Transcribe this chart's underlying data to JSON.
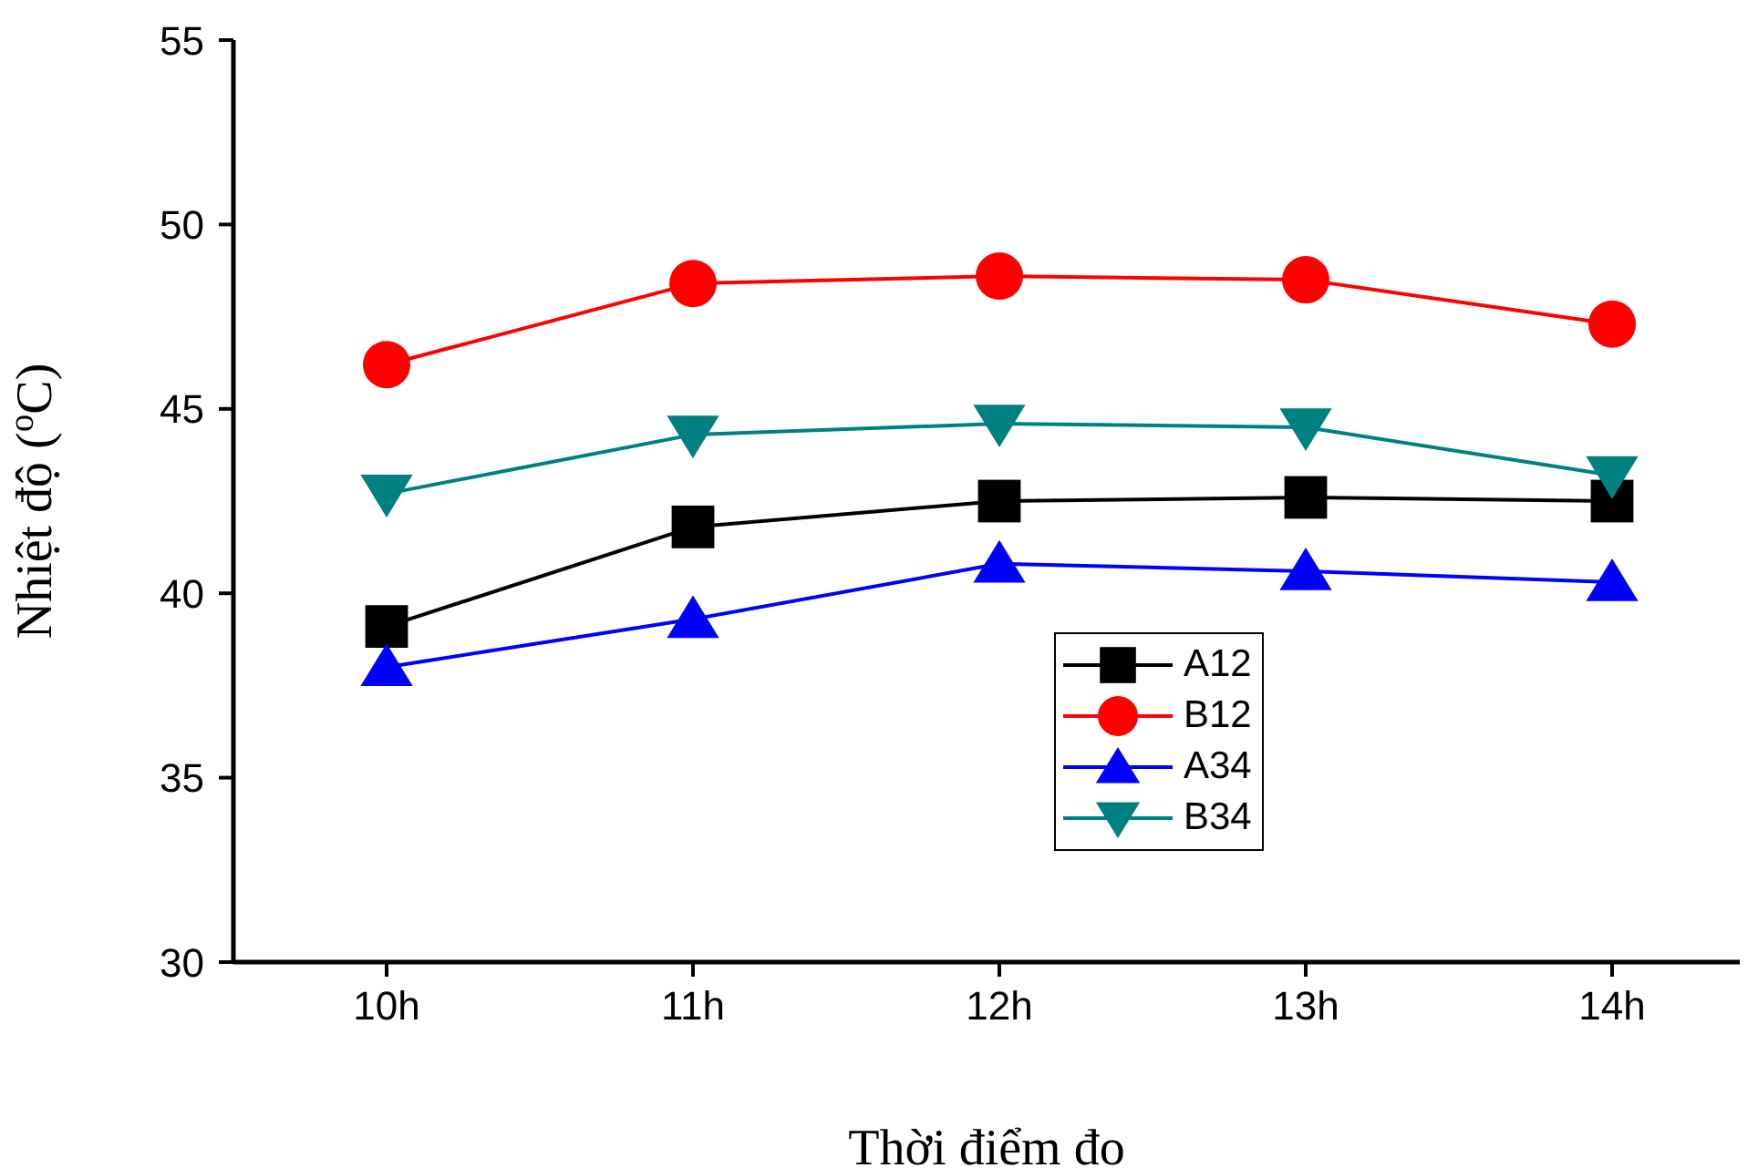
{
  "chart_data": {
    "type": "line",
    "xlabel": "Thời điểm đo",
    "ylabel": "Nhiệt độ ($^{o}$C)",
    "categories": [
      "10h",
      "11h",
      "12h",
      "13h",
      "14h"
    ],
    "ylim": [
      30,
      55
    ],
    "yticks": [
      30,
      35,
      40,
      45,
      50,
      55
    ],
    "grid": false,
    "legend": "bottom right",
    "series": [
      {
        "name": "A12",
        "color": "#000000",
        "marker": "square",
        "values": [
          39.1,
          41.8,
          42.5,
          42.6,
          42.5
        ]
      },
      {
        "name": "B12",
        "color": "#ff0000",
        "marker": "circle",
        "values": [
          46.2,
          48.4,
          48.6,
          48.5,
          47.3
        ]
      },
      {
        "name": "A34",
        "color": "#0000ff",
        "marker": "triangle",
        "values": [
          38.0,
          39.3,
          40.8,
          40.6,
          40.3
        ]
      },
      {
        "name": "B34",
        "color": "#008080",
        "marker": "triangle-down",
        "values": [
          42.7,
          44.3,
          44.6,
          44.5,
          43.2
        ]
      }
    ]
  }
}
